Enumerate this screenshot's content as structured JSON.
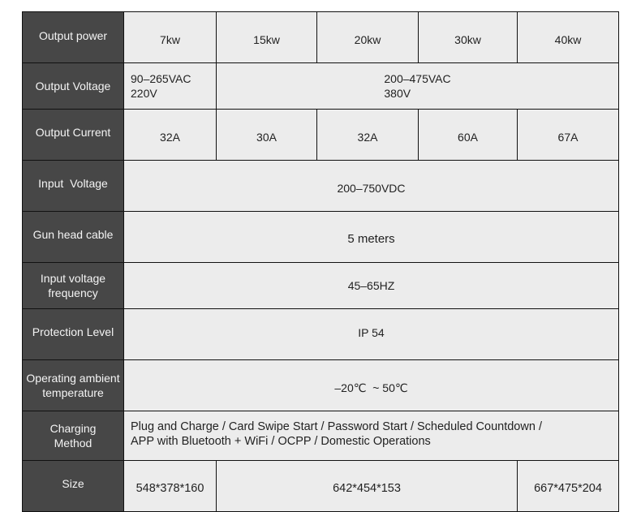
{
  "rows": {
    "output_power": {
      "label": "Output power",
      "values": [
        "7kw",
        "15kw",
        "20kw",
        "30kw",
        "40kw"
      ]
    },
    "output_voltage": {
      "label": "Output Voltage",
      "v1_line1": "90–265VAC",
      "v1_line2": "220V",
      "v2_line1": "200–475VAC",
      "v2_line2": "380V"
    },
    "output_current": {
      "label": "Output Current",
      "values": [
        "32A",
        "30A",
        "32A",
        "60A",
        "67A"
      ]
    },
    "input_voltage": {
      "label": "Input  Voltage",
      "value": "200–750VDC"
    },
    "gun_head_cable": {
      "label": "Gun head cable",
      "value": "5 meters"
    },
    "input_frequency": {
      "label_line1": "Input voltage",
      "label_line2": "frequency",
      "value": "45–65HZ"
    },
    "protection_level": {
      "label": "Protection Level",
      "value": "IP 54"
    },
    "ambient_temp": {
      "label_line1": "Operating ambient",
      "label_line2": "temperature",
      "value": "–20℃  ~ 50℃"
    },
    "charging_method": {
      "label_line1": "Charging",
      "label_line2": "Method",
      "line1": "Plug and Charge / Card Swipe Start / Password Start / Scheduled Countdown /",
      "line2": "APP with Bluetooth + WiFi / OCPP / Domestic Operations"
    },
    "size": {
      "label": "Size",
      "values": [
        "548*378*160",
        "642*454*153",
        "667*475*204"
      ]
    }
  }
}
